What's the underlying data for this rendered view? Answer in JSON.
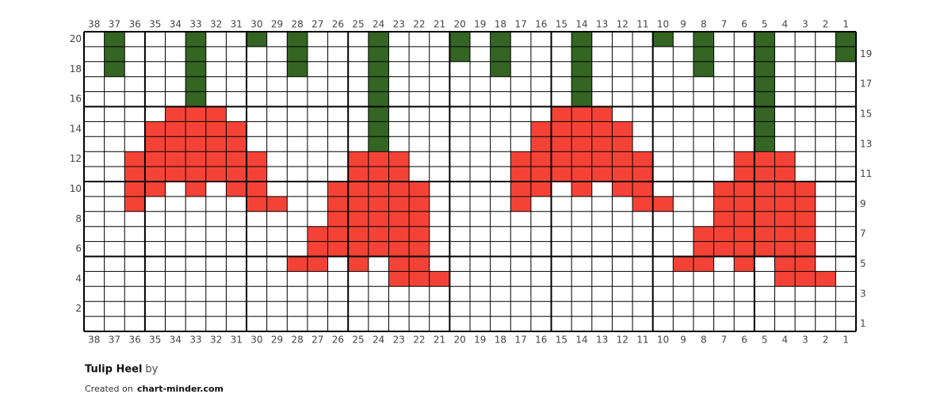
{
  "title": "Tulip Heel",
  "byline": "by",
  "credit": {
    "prefix": "Created on",
    "site": "chart-minder.com"
  },
  "columns": [
    38,
    37,
    36,
    35,
    34,
    33,
    32,
    31,
    30,
    29,
    28,
    27,
    26,
    25,
    24,
    23,
    22,
    21,
    20,
    19,
    18,
    17,
    16,
    15,
    14,
    13,
    12,
    11,
    10,
    9,
    8,
    7,
    6,
    5,
    4,
    3,
    2,
    1
  ],
  "left_row_labels": [
    20,
    18,
    16,
    14,
    12,
    10,
    8,
    6,
    4,
    2
  ],
  "right_row_labels": [
    19,
    17,
    15,
    13,
    11,
    9,
    7,
    5,
    3,
    1
  ],
  "colors": {
    "g": "#346523",
    "r": "#f44336"
  },
  "rows": [
    ".g...g..g.g...g...g.g...g...g.g..g...g",
    ".g...g....g...g...g.g...g.....g..g...g",
    ".g...g....g...g.....g...g.....g..g....",
    ".....g........g.........g........g....",
    ".....g........g.........g........g....",
    "....rrr.......g........rrr.......g....",
    "...rrrrr......g.......rrrrr......g....",
    "...rrrrr......g.......rrrrr......g....",
    "..rrrrrrr....rrr.....rrrrrrr....rrr...",
    "..rrrrrrr....rrr.....rrrrrrr....rrr...",
    "..rr.r.rr...rrrrr....rr.r.rr...rrrrr..",
    "..r.....rr..rrrrr....r.....rr..rrrrr..",
    "............rrrrr..............rrrrr..",
    "...........rrrrrr.............rrrrrr..",
    "...........rrrrrr.............rrrrrr..",
    "..........rr.r.rr............rr.r.rr..",
    "...............rrr................rrr.",
    "......................................",
    "......................................",
    "......................................"
  ]
}
